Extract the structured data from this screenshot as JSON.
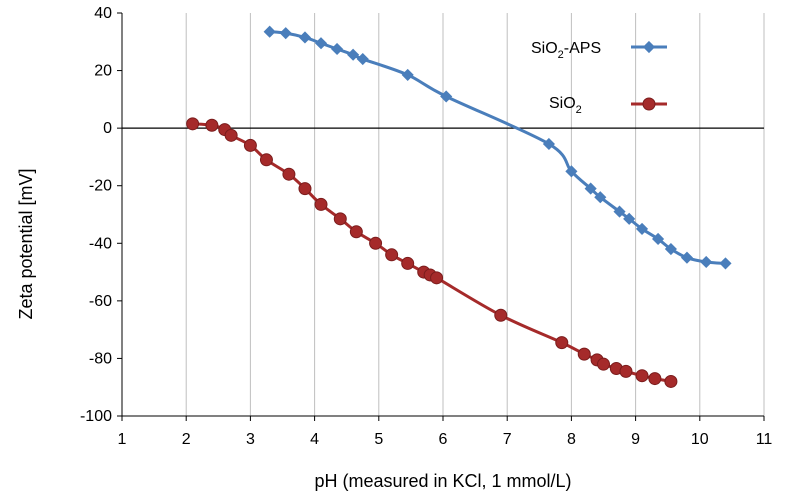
{
  "chart_data": {
    "type": "line",
    "xlabel": "pH (measured in KCl, 1 mmol/L)",
    "ylabel": "Zeta potential [mV]",
    "xlim": [
      1,
      11
    ],
    "ylim": [
      -100,
      40
    ],
    "xticks": [
      1,
      2,
      3,
      4,
      5,
      6,
      7,
      8,
      9,
      10,
      11
    ],
    "yticks": [
      40,
      20,
      0,
      -20,
      -40,
      -60,
      -80,
      -100
    ],
    "grid": "vertical",
    "legend_position": "top-right",
    "series": [
      {
        "name": "SiO2-APS",
        "legend": {
          "base": "SiO",
          "sub": "2",
          "suffix": "-APS"
        },
        "color": "#4a7ebb",
        "marker": "diamond",
        "x": [
          3.3,
          3.55,
          3.85,
          4.1,
          4.35,
          4.6,
          4.75,
          5.45,
          6.05,
          7.65,
          8.0,
          8.3,
          8.45,
          8.75,
          8.9,
          9.1,
          9.35,
          9.55,
          9.8,
          10.1,
          10.4
        ],
        "y": [
          33.5,
          33,
          31.5,
          29.5,
          27.5,
          25.5,
          24,
          18.5,
          11,
          -5.5,
          -15,
          -21,
          -24,
          -29,
          -31.5,
          -35,
          -38.5,
          -42,
          -45,
          -46.5,
          -47
        ]
      },
      {
        "name": "SiO2",
        "legend": {
          "base": "SiO",
          "sub": "2",
          "suffix": ""
        },
        "color": "#a52a2a",
        "marker": "circle",
        "x": [
          2.1,
          2.4,
          2.6,
          2.7,
          3.0,
          3.25,
          3.6,
          3.85,
          4.1,
          4.4,
          4.65,
          4.95,
          5.2,
          5.45,
          5.7,
          5.8,
          5.9,
          6.9,
          7.85,
          8.2,
          8.4,
          8.5,
          8.7,
          8.85,
          9.1,
          9.3,
          9.55
        ],
        "y": [
          1.5,
          1,
          -0.5,
          -2.5,
          -6,
          -11,
          -16,
          -21,
          -26.5,
          -31.5,
          -36,
          -40,
          -44,
          -47,
          -50,
          -51,
          -52,
          -65,
          -74.5,
          -78.5,
          -80.5,
          -82,
          -83.5,
          -84.5,
          -86,
          -87,
          -88
        ]
      }
    ]
  }
}
